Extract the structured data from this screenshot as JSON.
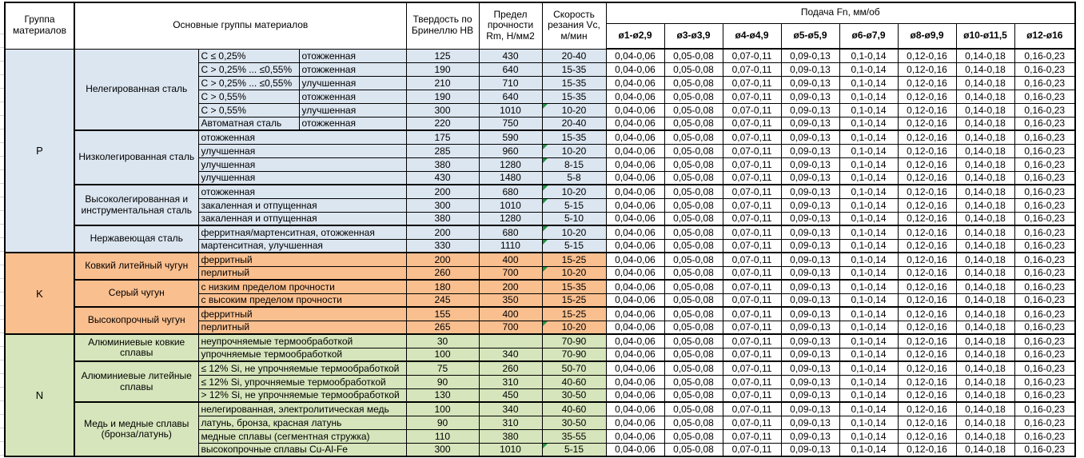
{
  "colors": {
    "group_p": "#dce6f1",
    "group_k": "#fabf8f",
    "group_n": "#d6e5bb",
    "flag": "#1f9240",
    "grid": "#000000"
  },
  "icons": {
    "flag": "green-corner-triangle-comment-indicator"
  },
  "header": {
    "group": "Группа материалов",
    "main_groups": "Основные группы материалов",
    "hardness": "Твердость по Бринеллю HB",
    "strength": "Предел прочности Rm, Н/мм2",
    "speed": "Скорость резания Vc, м/мин",
    "feed": "Подача Fn, мм/об",
    "feed_cols": [
      "ø1-ø2,9",
      "ø3-ø3,9",
      "ø4-ø4,9",
      "ø5-ø5,9",
      "ø6-ø7,9",
      "ø8-ø9,9",
      "ø10-ø11,5",
      "ø12-ø16"
    ]
  },
  "feed_values": [
    "0,04-0,06",
    "0,05-0,08",
    "0,07-0,11",
    "0,09-0,13",
    "0,1-0,14",
    "0,12-0,16",
    "0,14-0,18",
    "0,16-0,23"
  ],
  "groups": [
    {
      "letter": "P",
      "color_key": "group_p",
      "subgroups": [
        {
          "name": "Нелегированная сталь",
          "rows": [
            {
              "spec": "C ≤ 0,25%",
              "desc": "отожженная",
              "hb": "125",
              "rm": "430",
              "vc": "20-40",
              "flag": false
            },
            {
              "spec": "C > 0,25% ... ≤0,55%",
              "desc": "отожженная",
              "hb": "190",
              "rm": "640",
              "vc": "15-35",
              "flag": false
            },
            {
              "spec": "C > 0,25% ... ≤0,55%",
              "desc": "улучшенная",
              "hb": "210",
              "rm": "710",
              "vc": "15-35",
              "flag": false
            },
            {
              "spec": "C > 0,55%",
              "desc": "отожженная",
              "hb": "190",
              "rm": "640",
              "vc": "15-35",
              "flag": false
            },
            {
              "spec": "C > 0,55%",
              "desc": "улучшенная",
              "hb": "300",
              "rm": "1010",
              "vc": "10-20",
              "flag": true
            },
            {
              "spec": "Автоматная сталь",
              "desc": "отожженная",
              "hb": "220",
              "rm": "750",
              "vc": "20-40",
              "flag": false
            }
          ]
        },
        {
          "name": "Низколегированная сталь",
          "rows": [
            {
              "desc": "отожженная",
              "hb": "175",
              "rm": "590",
              "vc": "15-35",
              "flag": false
            },
            {
              "desc": "улучшенная",
              "hb": "285",
              "rm": "960",
              "vc": "10-20",
              "flag": true
            },
            {
              "desc": "улучшенная",
              "hb": "380",
              "rm": "1280",
              "vc": "8-15",
              "flag": true
            },
            {
              "desc": "улучшенная",
              "hb": "430",
              "rm": "1480",
              "vc": "5-8",
              "flag": false
            }
          ]
        },
        {
          "name": "Высоколегированная и инструментальная сталь",
          "rows": [
            {
              "desc": "отожженная",
              "hb": "200",
              "rm": "680",
              "vc": "10-20",
              "flag": true
            },
            {
              "desc": "закаленная и отпущенная",
              "hb": "300",
              "rm": "1010",
              "vc": "5-15",
              "flag": true
            },
            {
              "desc": "закаленная и отпущенная",
              "hb": "380",
              "rm": "1280",
              "vc": "5-10",
              "flag": false
            }
          ]
        },
        {
          "name": "Нержавеющая сталь",
          "rows": [
            {
              "desc": "ферритная/мартенситная, отожженная",
              "hb": "200",
              "rm": "680",
              "vc": "10-20",
              "flag": true
            },
            {
              "desc": "мартенситная, улучшенная",
              "hb": "330",
              "rm": "1110",
              "vc": "5-15",
              "flag": true
            }
          ]
        }
      ]
    },
    {
      "letter": "K",
      "color_key": "group_k",
      "subgroups": [
        {
          "name": "Ковкий литейный чугун",
          "rows": [
            {
              "desc": "ферритный",
              "hb": "200",
              "rm": "400",
              "vc": "15-25",
              "flag": false
            },
            {
              "desc": "перлитный",
              "hb": "260",
              "rm": "700",
              "vc": "10-20",
              "flag": true
            }
          ]
        },
        {
          "name": "Серый чугун",
          "rows": [
            {
              "desc": "с низким пределом прочности",
              "hb": "180",
              "rm": "200",
              "vc": "15-35",
              "flag": false
            },
            {
              "desc": "с высоким пределом прочности",
              "hb": "245",
              "rm": "350",
              "vc": "15-25",
              "flag": false
            }
          ]
        },
        {
          "name": "Высокопрочный чугун",
          "rows": [
            {
              "desc": "ферритный",
              "hb": "155",
              "rm": "400",
              "vc": "15-25",
              "flag": false
            },
            {
              "desc": "перлитный",
              "hb": "265",
              "rm": "700",
              "vc": "10-20",
              "flag": true
            }
          ]
        }
      ]
    },
    {
      "letter": "N",
      "color_key": "group_n",
      "subgroups": [
        {
          "name": "Алюминиевые ковкие сплавы",
          "rows": [
            {
              "desc": "неупрочняемые термообработкой",
              "hb": "30",
              "rm": "",
              "vc": "70-90",
              "flag": false
            },
            {
              "desc": "упрочняемые термообработкой",
              "hb": "100",
              "rm": "340",
              "vc": "70-90",
              "flag": false
            }
          ]
        },
        {
          "name": "Алюминиевые литейные сплавы",
          "rows": [
            {
              "desc": "≤ 12% Si, не упрочняемые термообработкой",
              "hb": "75",
              "rm": "260",
              "vc": "50-70",
              "flag": false
            },
            {
              "desc": "≤ 12% Si, упрочняемые термообработкой",
              "hb": "90",
              "rm": "310",
              "vc": "40-60",
              "flag": false
            },
            {
              "desc": "> 12% Si, не упрочняемые термообработкой",
              "hb": "130",
              "rm": "450",
              "vc": "30-50",
              "flag": false
            }
          ]
        },
        {
          "name": "Медь и медные сплавы (бронза/латунь)",
          "rows": [
            {
              "desc": "нелегированная, электролитическая медь",
              "hb": "100",
              "rm": "340",
              "vc": "40-60",
              "flag": false
            },
            {
              "desc": "латунь, бронза, красная латунь",
              "hb": "90",
              "rm": "310",
              "vc": "30-50",
              "flag": false
            },
            {
              "desc": "медные сплавы (сегментная стружка)",
              "hb": "110",
              "rm": "380",
              "vc": "35-55",
              "flag": false
            },
            {
              "desc": "высокопрочные сплавы Cu-Al-Fe",
              "hb": "300",
              "rm": "1010",
              "vc": "5-15",
              "flag": true
            }
          ]
        }
      ]
    }
  ]
}
